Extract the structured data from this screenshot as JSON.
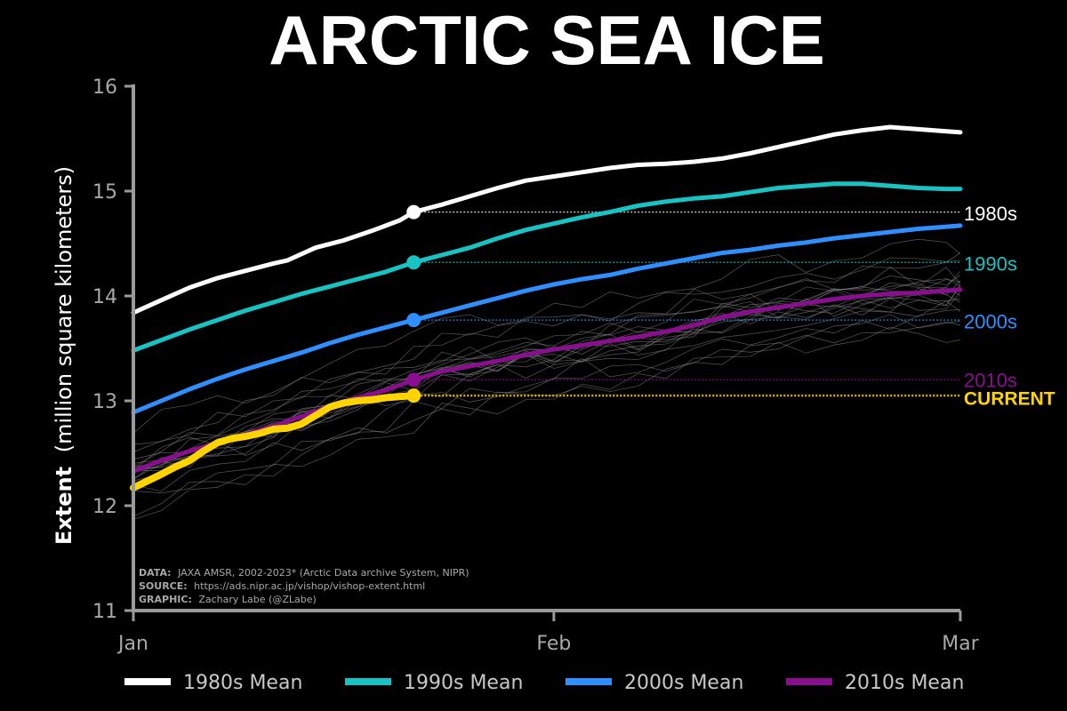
{
  "chart_data": {
    "type": "line",
    "title": "ARCTIC SEA ICE",
    "ylabel_bold": "Extent",
    "ylabel_rest": "(million square kilometers)",
    "ylim": [
      11,
      16
    ],
    "yticks": [
      "11",
      "12",
      "13",
      "14",
      "15",
      "16"
    ],
    "xlim": [
      1,
      60
    ],
    "xticks": [
      {
        "label": "Jan",
        "day": 1
      },
      {
        "label": "Feb",
        "day": 31
      },
      {
        "label": "Mar",
        "day": 60
      }
    ],
    "current_day": 21,
    "series": [
      {
        "key": "1980s",
        "legend": "1980s Mean",
        "end_label": "1980s",
        "color": "#ffffff",
        "width": 5,
        "marker_value": 14.8,
        "points": [
          [
            1,
            13.84
          ],
          [
            3,
            13.96
          ],
          [
            5,
            14.08
          ],
          [
            7,
            14.17
          ],
          [
            9,
            14.24
          ],
          [
            11,
            14.31
          ],
          [
            12,
            14.34
          ],
          [
            14,
            14.46
          ],
          [
            16,
            14.53
          ],
          [
            18,
            14.62
          ],
          [
            20,
            14.72
          ],
          [
            21,
            14.8
          ],
          [
            23,
            14.87
          ],
          [
            25,
            14.95
          ],
          [
            27,
            15.03
          ],
          [
            29,
            15.1
          ],
          [
            31,
            15.14
          ],
          [
            33,
            15.18
          ],
          [
            35,
            15.22
          ],
          [
            37,
            15.25
          ],
          [
            39,
            15.26
          ],
          [
            41,
            15.28
          ],
          [
            43,
            15.31
          ],
          [
            45,
            15.36
          ],
          [
            47,
            15.42
          ],
          [
            49,
            15.48
          ],
          [
            51,
            15.54
          ],
          [
            53,
            15.58
          ],
          [
            55,
            15.61
          ],
          [
            57,
            15.59
          ],
          [
            59,
            15.57
          ],
          [
            60,
            15.56
          ]
        ]
      },
      {
        "key": "1990s",
        "legend": "1990s Mean",
        "end_label": "1990s",
        "color": "#19c3c3",
        "width": 5,
        "marker_value": 14.32,
        "points": [
          [
            1,
            13.48
          ],
          [
            3,
            13.58
          ],
          [
            5,
            13.68
          ],
          [
            7,
            13.77
          ],
          [
            9,
            13.86
          ],
          [
            11,
            13.94
          ],
          [
            13,
            14.02
          ],
          [
            15,
            14.09
          ],
          [
            17,
            14.16
          ],
          [
            19,
            14.23
          ],
          [
            21,
            14.32
          ],
          [
            23,
            14.39
          ],
          [
            25,
            14.46
          ],
          [
            27,
            14.55
          ],
          [
            29,
            14.63
          ],
          [
            31,
            14.69
          ],
          [
            33,
            14.75
          ],
          [
            35,
            14.8
          ],
          [
            37,
            14.86
          ],
          [
            39,
            14.9
          ],
          [
            41,
            14.93
          ],
          [
            43,
            14.95
          ],
          [
            45,
            14.99
          ],
          [
            47,
            15.03
          ],
          [
            49,
            15.05
          ],
          [
            51,
            15.07
          ],
          [
            53,
            15.07
          ],
          [
            55,
            15.05
          ],
          [
            57,
            15.03
          ],
          [
            59,
            15.02
          ],
          [
            60,
            15.02
          ]
        ]
      },
      {
        "key": "2000s",
        "legend": "2000s Mean",
        "end_label": "2000s",
        "color": "#2f8fff",
        "width": 5,
        "marker_value": 13.77,
        "points": [
          [
            1,
            12.89
          ],
          [
            3,
            13.0
          ],
          [
            5,
            13.11
          ],
          [
            7,
            13.21
          ],
          [
            9,
            13.3
          ],
          [
            11,
            13.38
          ],
          [
            13,
            13.46
          ],
          [
            15,
            13.55
          ],
          [
            17,
            13.63
          ],
          [
            19,
            13.7
          ],
          [
            21,
            13.77
          ],
          [
            23,
            13.84
          ],
          [
            25,
            13.91
          ],
          [
            27,
            13.98
          ],
          [
            29,
            14.05
          ],
          [
            31,
            14.11
          ],
          [
            33,
            14.16
          ],
          [
            35,
            14.2
          ],
          [
            37,
            14.26
          ],
          [
            39,
            14.31
          ],
          [
            41,
            14.36
          ],
          [
            43,
            14.41
          ],
          [
            45,
            14.44
          ],
          [
            47,
            14.48
          ],
          [
            49,
            14.51
          ],
          [
            51,
            14.55
          ],
          [
            53,
            14.58
          ],
          [
            55,
            14.61
          ],
          [
            57,
            14.64
          ],
          [
            59,
            14.66
          ],
          [
            60,
            14.67
          ]
        ]
      },
      {
        "key": "2010s",
        "legend": "2010s Mean",
        "end_label": "2010s",
        "color": "#8a0f8f",
        "width": 5,
        "marker_value": 13.2,
        "points": [
          [
            1,
            12.33
          ],
          [
            3,
            12.43
          ],
          [
            5,
            12.52
          ],
          [
            7,
            12.6
          ],
          [
            9,
            12.68
          ],
          [
            11,
            12.76
          ],
          [
            13,
            12.85
          ],
          [
            15,
            12.95
          ],
          [
            17,
            13.03
          ],
          [
            19,
            13.1
          ],
          [
            21,
            13.2
          ],
          [
            23,
            13.28
          ],
          [
            25,
            13.33
          ],
          [
            27,
            13.38
          ],
          [
            29,
            13.44
          ],
          [
            31,
            13.49
          ],
          [
            33,
            13.53
          ],
          [
            35,
            13.57
          ],
          [
            37,
            13.61
          ],
          [
            39,
            13.66
          ],
          [
            41,
            13.72
          ],
          [
            43,
            13.8
          ],
          [
            45,
            13.85
          ],
          [
            47,
            13.89
          ],
          [
            49,
            13.93
          ],
          [
            51,
            13.97
          ],
          [
            53,
            14.0
          ],
          [
            55,
            14.02
          ],
          [
            57,
            14.03
          ],
          [
            59,
            14.05
          ],
          [
            60,
            14.06
          ]
        ]
      },
      {
        "key": "current",
        "legend": "",
        "end_label": "CURRENT",
        "color": "#ffd400",
        "width": 8,
        "marker_value": 13.05,
        "points": [
          [
            1,
            12.17
          ],
          [
            3,
            12.3
          ],
          [
            4,
            12.37
          ],
          [
            5,
            12.43
          ],
          [
            6,
            12.52
          ],
          [
            7,
            12.6
          ],
          [
            8,
            12.64
          ],
          [
            9,
            12.66
          ],
          [
            10,
            12.69
          ],
          [
            11,
            12.73
          ],
          [
            12,
            12.74
          ],
          [
            13,
            12.78
          ],
          [
            14,
            12.86
          ],
          [
            15,
            12.94
          ],
          [
            16,
            12.98
          ],
          [
            17,
            13.0
          ],
          [
            18,
            13.01
          ],
          [
            19,
            13.03
          ],
          [
            20,
            13.04
          ],
          [
            21,
            13.05
          ]
        ]
      }
    ],
    "background_years_note": "",
    "credits": [
      {
        "label": "DATA:",
        "text": "JAXA AMSR, 2002-2023* (Arctic Data archive System, NIPR)"
      },
      {
        "label": "SOURCE:",
        "text": "https://ads.nipr.ac.jp/vishop/vishop-extent.html"
      },
      {
        "label": "GRAPHIC:",
        "text": "Zachary Labe (@ZLabe)"
      }
    ]
  }
}
